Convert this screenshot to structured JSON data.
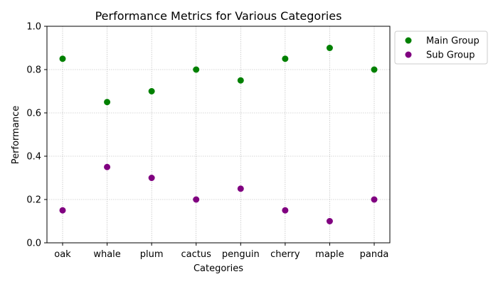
{
  "chart_data": {
    "type": "scatter",
    "title": "Performance Metrics for Various Categories",
    "xlabel": "Categories",
    "ylabel": "Performance",
    "categories": [
      "oak",
      "whale",
      "plum",
      "cactus",
      "penguin",
      "cherry",
      "maple",
      "panda"
    ],
    "ylim": [
      0,
      1.0
    ],
    "yticks": [
      0.0,
      0.2,
      0.4,
      0.6,
      0.8,
      1.0
    ],
    "ytick_labels": [
      "0.0",
      "0.2",
      "0.4",
      "0.6",
      "0.8",
      "1.0"
    ],
    "grid": true,
    "legend_position": "outside-right-top",
    "series": [
      {
        "name": "Main Group",
        "color": "#008000",
        "values": [
          0.85,
          0.65,
          0.7,
          0.8,
          0.75,
          0.85,
          0.9,
          0.8
        ]
      },
      {
        "name": "Sub Group",
        "color": "#800080",
        "values": [
          0.15,
          0.35,
          0.3,
          0.2,
          0.25,
          0.15,
          0.1,
          0.2
        ]
      }
    ]
  }
}
